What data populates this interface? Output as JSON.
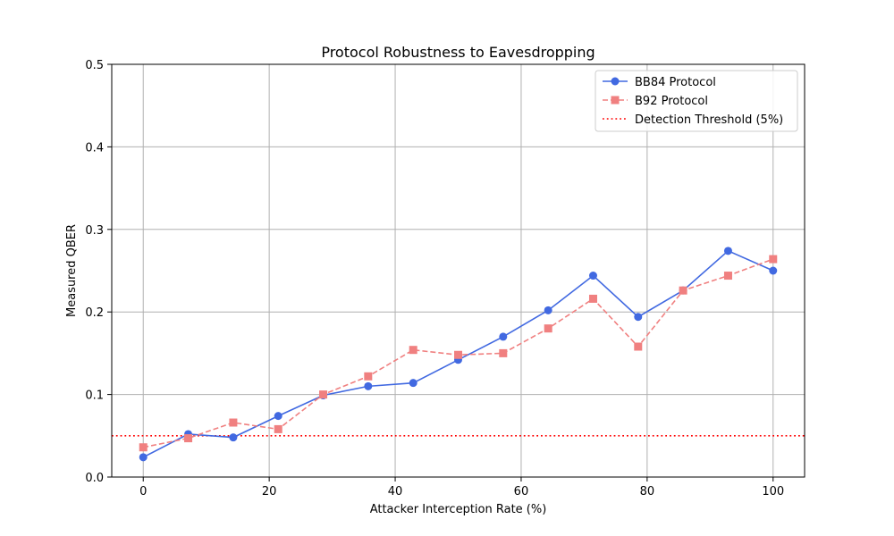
{
  "chart_data": {
    "type": "line",
    "title": "Protocol Robustness to Eavesdropping",
    "xlabel": "Attacker Interception Rate (%)",
    "ylabel": "Measured QBER",
    "xlim": [
      -5,
      105
    ],
    "ylim": [
      0,
      0.5
    ],
    "xticks": [
      0,
      20,
      40,
      60,
      80,
      100
    ],
    "yticks": [
      0.0,
      0.1,
      0.2,
      0.3,
      0.4,
      0.5
    ],
    "xtick_labels": [
      "0",
      "20",
      "40",
      "60",
      "80",
      "100"
    ],
    "ytick_labels": [
      "0.0",
      "0.1",
      "0.2",
      "0.3",
      "0.4",
      "0.5"
    ],
    "grid": true,
    "legend_position": "top-right",
    "x": [
      0,
      7.14,
      14.29,
      21.43,
      28.57,
      35.71,
      42.86,
      50,
      57.14,
      64.29,
      71.43,
      78.57,
      85.71,
      92.86,
      100
    ],
    "series": [
      {
        "name": "BB84 Protocol",
        "color": "#4169e1",
        "style": "solid",
        "marker": "circle",
        "values": [
          0.024,
          0.052,
          0.048,
          0.074,
          0.099,
          0.11,
          0.114,
          0.142,
          0.17,
          0.202,
          0.244,
          0.194,
          0.226,
          0.274,
          0.25
        ]
      },
      {
        "name": "B92 Protocol",
        "color": "#f08080",
        "style": "dashed",
        "marker": "square",
        "values": [
          0.036,
          0.047,
          0.066,
          0.058,
          0.1,
          0.122,
          0.154,
          0.148,
          0.15,
          0.18,
          0.216,
          0.158,
          0.226,
          0.244,
          0.264
        ]
      }
    ],
    "reference_lines": [
      {
        "name": "Detection Threshold (5%)",
        "y": 0.05,
        "color": "#ff0000",
        "style": "dotted"
      }
    ]
  }
}
